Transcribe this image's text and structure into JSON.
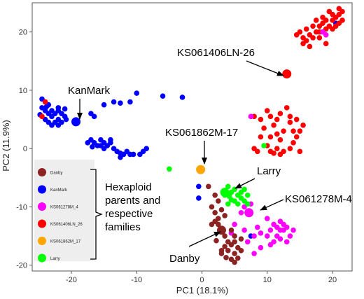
{
  "chart_data": {
    "type": "scatter",
    "title": "",
    "xlabel": "PC1 (18.1%)",
    "ylabel": "PC2 (11.9%)",
    "xlim": [
      -26,
      23
    ],
    "ylim": [
      -21,
      25
    ],
    "x_ticks": [
      -20,
      -10,
      0,
      10,
      20
    ],
    "y_ticks": [
      -20,
      -10,
      0,
      10,
      20
    ],
    "grid": false,
    "legend_position": "left-middle",
    "legend": [
      {
        "name": "Danby",
        "color": "#8b2323"
      },
      {
        "name": "KanMark",
        "color": "#0000ff"
      },
      {
        "name": "KS061278M_4",
        "color": "#ff00ff"
      },
      {
        "name": "KS061406LN_26",
        "color": "#ff0000"
      },
      {
        "name": "KS061862M_17",
        "color": "#ffa500"
      },
      {
        "name": "Larry",
        "color": "#00ff00"
      }
    ],
    "legend_brace_label": "Hexaploid parents and respective families",
    "series": [
      {
        "name": "KanMark",
        "color": "#0000ff",
        "points": [
          [
            -24.5,
            8.5
          ],
          [
            -24,
            8
          ],
          [
            -23.5,
            7.5
          ],
          [
            -24.5,
            7
          ],
          [
            -24,
            6.5
          ],
          [
            -23.5,
            6
          ],
          [
            -23,
            6.5
          ],
          [
            -22.5,
            6
          ],
          [
            -22,
            6.5
          ],
          [
            -21.5,
            6
          ],
          [
            -21,
            5.5
          ],
          [
            -22,
            5
          ],
          [
            -23,
            5.5
          ],
          [
            -24,
            5
          ],
          [
            -23.5,
            4.5
          ],
          [
            -22.5,
            4.5
          ],
          [
            -21.5,
            4.5
          ],
          [
            -22,
            4
          ],
          [
            -23,
            4
          ],
          [
            -22,
            7
          ],
          [
            -21,
            6.8
          ],
          [
            -20.8,
            5
          ],
          [
            -24.8,
            5.8
          ],
          [
            -23.8,
            7.2
          ],
          [
            -17,
            6
          ],
          [
            -16.5,
            5.5
          ],
          [
            -15,
            7.5
          ],
          [
            -13.5,
            8
          ],
          [
            -12.5,
            7.8
          ],
          [
            -11,
            8
          ],
          [
            -10,
            9.5
          ],
          [
            -6,
            9
          ],
          [
            -3,
            8.8
          ],
          [
            -17,
            1.5
          ],
          [
            -17.5,
            1
          ],
          [
            -16.5,
            1
          ],
          [
            -16,
            0.5
          ],
          [
            -15.5,
            1.5
          ],
          [
            -15,
            1
          ],
          [
            -15.5,
            0.5
          ],
          [
            -14.5,
            0.5
          ],
          [
            -14,
            1.5
          ],
          [
            -13.5,
            0
          ],
          [
            -13,
            -0.5
          ],
          [
            -12.5,
            -0.8
          ],
          [
            -12,
            -1
          ],
          [
            -12.5,
            -1.5
          ],
          [
            -11.5,
            -0.5
          ],
          [
            -11,
            -1
          ],
          [
            -10.5,
            -1
          ],
          [
            -9.5,
            -1
          ],
          [
            -9,
            -0.5
          ],
          [
            -8.5,
            0
          ],
          [
            -15,
            0
          ],
          [
            -14,
            1
          ],
          [
            -16.8,
            0.3
          ],
          [
            -0.5,
            -6.5
          ],
          [
            -0.5,
            -8.5
          ],
          [
            20.5,
            21.5
          ],
          [
            7.5,
            -15
          ]
        ]
      },
      {
        "name": "KS061406LN_26",
        "color": "#ff0000",
        "points": [
          [
            -24,
            8
          ],
          [
            -24.5,
            5.5
          ],
          [
            15,
            20
          ],
          [
            15.5,
            19
          ],
          [
            16,
            20.5
          ],
          [
            16.5,
            19.5
          ],
          [
            16,
            18.5
          ],
          [
            17,
            19
          ],
          [
            17.5,
            20
          ],
          [
            17,
            21
          ],
          [
            18,
            20
          ],
          [
            18,
            21
          ],
          [
            17.5,
            22
          ],
          [
            18.5,
            21.5
          ],
          [
            19,
            22
          ],
          [
            19,
            20.5
          ],
          [
            19.5,
            21
          ],
          [
            20,
            22
          ],
          [
            20,
            23
          ],
          [
            20.5,
            22.5
          ],
          [
            21,
            23
          ],
          [
            21.5,
            22
          ],
          [
            21,
            21.5
          ],
          [
            20.5,
            21
          ],
          [
            20,
            20.5
          ],
          [
            19.5,
            23.5
          ],
          [
            21,
            24
          ],
          [
            21.5,
            23.5
          ],
          [
            18,
            19
          ],
          [
            16.5,
            17.5
          ],
          [
            15.5,
            18
          ],
          [
            14.5,
            19.5
          ],
          [
            19,
            18
          ],
          [
            18.5,
            22.5
          ],
          [
            8,
            5.5
          ],
          [
            9,
            5
          ],
          [
            10,
            6.5
          ],
          [
            10.5,
            5.5
          ],
          [
            11,
            4
          ],
          [
            11.5,
            5
          ],
          [
            12,
            6
          ],
          [
            13,
            7
          ],
          [
            13.5,
            4.5
          ],
          [
            12.5,
            3
          ],
          [
            12,
            1.5
          ],
          [
            11.5,
            2.5
          ],
          [
            10.5,
            2
          ],
          [
            10,
            0.5
          ],
          [
            10.5,
            -0.5
          ],
          [
            11.5,
            0
          ],
          [
            12.5,
            -0.5
          ],
          [
            13.5,
            0
          ],
          [
            14,
            1
          ],
          [
            14.5,
            2
          ],
          [
            14,
            3
          ],
          [
            15,
            3
          ],
          [
            15.5,
            4
          ],
          [
            14.5,
            5
          ],
          [
            13.5,
            5.5
          ],
          [
            15,
            -0.5
          ],
          [
            8.5,
            -0.5
          ],
          [
            9,
            2
          ],
          [
            9.5,
            3.5
          ],
          [
            8,
            0
          ],
          [
            11,
            -0.8
          ],
          [
            12,
            -1
          ]
        ]
      },
      {
        "name": "KS061278M_4",
        "color": "#ff00ff",
        "points": [
          [
            7.5,
            5.5
          ],
          [
            6,
            -11
          ],
          [
            6.5,
            -10
          ],
          [
            5,
            -13
          ],
          [
            4.5,
            -14.5
          ],
          [
            6.5,
            -14
          ],
          [
            7,
            -16
          ],
          [
            8,
            -15
          ],
          [
            8.5,
            -13.5
          ],
          [
            9,
            -14.5
          ],
          [
            9,
            -17
          ],
          [
            8,
            -18
          ],
          [
            10,
            -12
          ],
          [
            11,
            -13
          ],
          [
            12,
            -12.5
          ],
          [
            12.5,
            -14
          ],
          [
            11.5,
            -15
          ],
          [
            10.5,
            -14
          ],
          [
            13,
            -13.5
          ],
          [
            13.5,
            -15
          ],
          [
            12,
            -15.5
          ],
          [
            11,
            -16
          ],
          [
            14,
            -14
          ],
          [
            12.5,
            -13
          ],
          [
            10,
            -15
          ],
          [
            11.5,
            -13.5
          ],
          [
            13,
            -16
          ],
          [
            12,
            -14
          ],
          [
            10.5,
            -16.5
          ],
          [
            18.5,
            20
          ],
          [
            19,
            19.5
          ],
          [
            7.5,
            -9.5
          ]
        ]
      },
      {
        "name": "Larry",
        "color": "#00ff00",
        "points": [
          [
            4,
            -6.5
          ],
          [
            4.5,
            -7.5
          ],
          [
            5,
            -7
          ],
          [
            5.5,
            -8
          ],
          [
            6,
            -7.5
          ],
          [
            6.5,
            -7
          ],
          [
            7,
            -8
          ],
          [
            6,
            -8.5
          ],
          [
            5,
            -9
          ],
          [
            4.5,
            -8.8
          ],
          [
            3.5,
            -8
          ],
          [
            4,
            -9.5
          ],
          [
            5.5,
            -9.5
          ],
          [
            6.5,
            -9
          ],
          [
            7,
            -9.5
          ],
          [
            -5,
            -3.5
          ],
          [
            9.5,
            0.5
          ],
          [
            4.2,
            -8.2
          ]
        ]
      },
      {
        "name": "Danby",
        "color": "#8b2323",
        "points": [
          [
            1,
            -6.5
          ],
          [
            2,
            -8
          ],
          [
            2.5,
            -9
          ],
          [
            1.5,
            -10
          ],
          [
            2,
            -11
          ],
          [
            2.5,
            -12
          ],
          [
            3,
            -10.5
          ],
          [
            3.5,
            -11.5
          ],
          [
            2.5,
            -13
          ],
          [
            3,
            -14
          ],
          [
            3.5,
            -15
          ],
          [
            4,
            -16
          ],
          [
            4.5,
            -16.5
          ],
          [
            4,
            -17.5
          ],
          [
            5,
            -18
          ],
          [
            5.5,
            -17
          ],
          [
            5,
            -16
          ],
          [
            4.5,
            -19
          ],
          [
            5,
            -19.5
          ],
          [
            5.5,
            -18.8
          ],
          [
            3.5,
            -16.8
          ],
          [
            3,
            -17.5
          ],
          [
            4.5,
            -14
          ],
          [
            5,
            -15
          ],
          [
            6,
            -15.5
          ],
          [
            6,
            -17.5
          ],
          [
            3,
            -18
          ],
          [
            2,
            -12.5
          ],
          [
            1.5,
            -13
          ],
          [
            2.2,
            -15.8
          ],
          [
            3.7,
            -18.7
          ]
        ]
      }
    ],
    "parents": [
      {
        "name": "KanMark",
        "color": "#0000ff",
        "x": -19.3,
        "y": 4.6
      },
      {
        "name": "KS061406LN-26",
        "color": "#ff0000",
        "x": 13,
        "y": 12.8
      },
      {
        "name": "KS061862M-17",
        "color": "#ffa500",
        "x": -0.2,
        "y": -3.6
      },
      {
        "name": "Larry",
        "color": "#00ff00",
        "x": 3.5,
        "y": -7.5
      },
      {
        "name": "KS061278M-4",
        "color": "#ff00ff",
        "x": 7.2,
        "y": -11
      },
      {
        "name": "Danby",
        "color": "#8b2323",
        "x": 3,
        "y": -14
      }
    ],
    "annotations": [
      {
        "label": "KanMark",
        "target": "KanMark"
      },
      {
        "label": "KS061406LN-26",
        "target": "KS061406LN-26"
      },
      {
        "label": "KS061862M-17",
        "target": "KS061862M-17"
      },
      {
        "label": "Larry",
        "target": "Larry"
      },
      {
        "label": "KS061278M-4",
        "target": "KS061278M-4"
      },
      {
        "label": "Danby",
        "target": "Danby"
      }
    ]
  }
}
